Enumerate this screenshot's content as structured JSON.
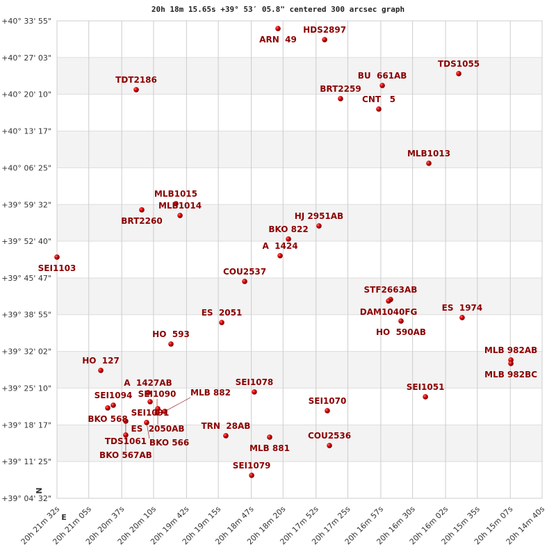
{
  "chart_data": {
    "type": "scatter",
    "title": "20h 18m 15.65s +39° 53′ 05.8\" centered 300 arcsec graph",
    "x_ticks": [
      "20h 21m 32s",
      "20h 21m 05s",
      "20h 20m 37s",
      "20h 20m 10s",
      "20h 19m 42s",
      "20h 19m 15s",
      "20h 18m 47s",
      "20h 18m 20s",
      "20h 17m 52s",
      "20h 17m 25s",
      "20h 16m 57s",
      "20h 16m 30s",
      "20h 16m 02s",
      "20h 15m 35s",
      "20h 15m 07s",
      "20h 14m 40s"
    ],
    "y_ticks": [
      "+40° 33' 55\"",
      "+40° 27' 03\"",
      "+40° 20' 10\"",
      "+40° 13' 17\"",
      "+40° 06' 25\"",
      "+39° 59' 32\"",
      "+39° 52' 40\"",
      "+39° 45' 47\"",
      "+39° 38' 55\"",
      "+39° 32' 02\"",
      "+39° 25' 10\"",
      "+39° 18' 17\"",
      "+39° 11' 25\"",
      "+39° 04' 32\""
    ],
    "xlim": [
      "20h 21m 32s",
      "20h 14m 40s"
    ],
    "ylim": [
      "+39° 04' 32\"",
      "+40° 33' 55\""
    ],
    "grid": true,
    "banded_background": true,
    "compass": {
      "north": "N",
      "east": "E"
    },
    "colors": {
      "point": "#cc0000",
      "label": "#8b0000",
      "band": "#f3f3f3",
      "grid": "#cccccc"
    },
    "points": [
      {
        "name": "ARN  49",
        "ra": "20h 18m 24.3s",
        "dec": "+40° 32' 29\""
      },
      {
        "name": "HDS2897",
        "ra": "20h 17m 44.7s",
        "dec": "+40° 30' 24\""
      },
      {
        "name": "TDS1055",
        "ra": "20h 15m 50.8s",
        "dec": "+40° 24' 02\""
      },
      {
        "name": "BU  661AB",
        "ra": "20h 16m 55.7s",
        "dec": "+40° 21' 49\""
      },
      {
        "name": "TDT2186",
        "ra": "20h 20m 24.7s",
        "dec": "+40° 21' 02\""
      },
      {
        "name": "BRT2259",
        "ra": "20h 17m 31.2s",
        "dec": "+40° 19' 21\""
      },
      {
        "name": "CNT   5",
        "ra": "20h 16m 58.7s",
        "dec": "+40° 17' 24\""
      },
      {
        "name": "MLB1013",
        "ra": "20h 16m 16.2s",
        "dec": "+40° 07' 15\""
      },
      {
        "name": "MLB1015",
        "ra": "20h 19m 51.1s",
        "dec": "+39° 59' 42\""
      },
      {
        "name": "BRT2260",
        "ra": "20h 20m 20.0s",
        "dec": "+39° 58' 32\""
      },
      {
        "name": "MLB1014",
        "ra": "20h 19m 47.5s",
        "dec": "+39° 57' 29\""
      },
      {
        "name": "HJ 2951AB",
        "ra": "20h 17m 49.5s",
        "dec": "+39° 55' 32\""
      },
      {
        "name": "BKO 822",
        "ra": "20h 18m 15.4s",
        "dec": "+39° 53' 04\""
      },
      {
        "name": "A  1424",
        "ra": "20h 18m 22.5s",
        "dec": "+39° 49' 57\""
      },
      {
        "name": "SEI1103",
        "ra": "20h 21m 32.0s",
        "dec": "+39° 49' 41\""
      },
      {
        "name": "COU2537",
        "ra": "20h 18m 52.6s",
        "dec": "+39° 45' 08\""
      },
      {
        "name": "STF2663AB",
        "ra": "20h 16m 48.7s",
        "dec": "+39° 41' 45\""
      },
      {
        "name": "DAM1040FG",
        "ra": "20h 16m 50.4s",
        "dec": "+39° 41' 29\""
      },
      {
        "name": "HO  590AB",
        "ra": "20h 16m 39.8s",
        "dec": "+39° 37' 43\""
      },
      {
        "name": "ES  1974",
        "ra": "20h 15m 47.9s",
        "dec": "+39° 38' 22\""
      },
      {
        "name": "ES  2051",
        "ra": "20h 19m 12.1s",
        "dec": "+39° 37' 27\""
      },
      {
        "name": "HO  593",
        "ra": "20h 19m 55.2s",
        "dec": "+39° 33' 25\""
      },
      {
        "name": "MLB 982AB",
        "ra": "20h 15m 06.5s",
        "dec": "+39° 30' 26\""
      },
      {
        "name": "MLB 982BC",
        "ra": "20h 15m 06.5s",
        "dec": "+39° 29' 47\""
      },
      {
        "name": "HO  127",
        "ra": "20h 20m 54.8s",
        "dec": "+39° 28' 29\""
      },
      {
        "name": "SEI1078",
        "ra": "20h 18m 44.4s",
        "dec": "+39° 24' 27\""
      },
      {
        "name": "A  1427AB",
        "ra": "20h 20m 14.7s",
        "dec": "+39° 24' 19\""
      },
      {
        "name": "SEI1051",
        "ra": "20h 16m 19.1s",
        "dec": "+39° 23' 32\""
      },
      {
        "name": "SEI1091",
        "ra": "20h 20m 12.9s",
        "dec": "+39° 22' 37\""
      },
      {
        "name": "SEI1094",
        "ra": "20h 20m 44.2s",
        "dec": "+39° 21' 58\""
      },
      {
        "name": "BKO 568",
        "ra": "20h 20m 48.9s",
        "dec": "+39° 21' 27\""
      },
      {
        "name": "ES  2050AB",
        "ra": "20h 20m 06.4s",
        "dec": "+39° 21' 19\""
      },
      {
        "name": "SEI1090",
        "ra": "20h 20m 07.0s",
        "dec": "+39° 20' 32\""
      },
      {
        "name": "MLB 882",
        "ra": "20h 20m 00.5s",
        "dec": "+39° 20' 48\""
      },
      {
        "name": "TDS1061",
        "ra": "20h 20m 33.6s",
        "dec": "+39° 18' 59\""
      },
      {
        "name": "BKO 566",
        "ra": "20h 20m 15.9s",
        "dec": "+39° 18' 43\""
      },
      {
        "name": "BKO 567AB",
        "ra": "20h 20m 33.6s",
        "dec": "+39° 16' 23\""
      },
      {
        "name": "SEI1070",
        "ra": "20h 17m 42.4s",
        "dec": "+39° 20' 56\""
      },
      {
        "name": "TRN  28AB",
        "ra": "20h 19m 08.6s",
        "dec": "+39° 16' 15\""
      },
      {
        "name": "MLB 881",
        "ra": "20h 18m 31.4s",
        "dec": "+39° 15' 59\""
      },
      {
        "name": "COU2536",
        "ra": "20h 17m 40.6s",
        "dec": "+39° 14' 25\""
      },
      {
        "name": "SEI1079",
        "ra": "20h 18m 46.7s",
        "dec": "+39° 08' 50\""
      }
    ]
  }
}
